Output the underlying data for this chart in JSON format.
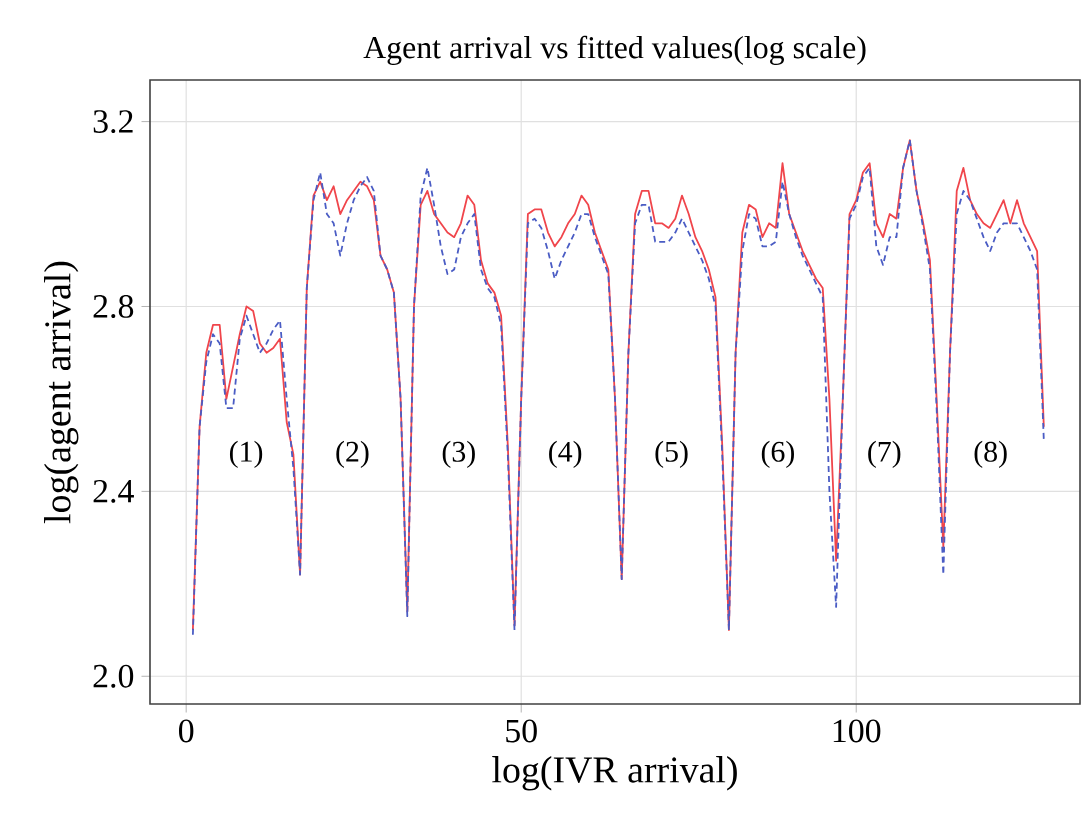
{
  "chart_data": {
    "type": "line",
    "title": "Agent arrival vs fitted values(log scale)",
    "xlabel": "log(IVR arrival)",
    "ylabel": "log(agent arrival)",
    "x": [
      1,
      2,
      3,
      4,
      5,
      6,
      7,
      8,
      9,
      10,
      11,
      12,
      13,
      14,
      15,
      16,
      17,
      18,
      19,
      20,
      21,
      22,
      23,
      24,
      25,
      26,
      27,
      28,
      29,
      30,
      31,
      32,
      33,
      34,
      35,
      36,
      37,
      38,
      39,
      40,
      41,
      42,
      43,
      44,
      45,
      46,
      47,
      48,
      49,
      50,
      51,
      52,
      53,
      54,
      55,
      56,
      57,
      58,
      59,
      60,
      61,
      62,
      63,
      64,
      65,
      66,
      67,
      68,
      69,
      70,
      71,
      72,
      73,
      74,
      75,
      76,
      77,
      78,
      79,
      80,
      81,
      82,
      83,
      84,
      85,
      86,
      87,
      88,
      89,
      90,
      91,
      92,
      93,
      94,
      95,
      96,
      97,
      98,
      99,
      100,
      101,
      102,
      103,
      104,
      105,
      106,
      107,
      108,
      109,
      110,
      111,
      112,
      113,
      114,
      115,
      116,
      117,
      118,
      119,
      120,
      121,
      122,
      123,
      124,
      125,
      126,
      127,
      128
    ],
    "series": [
      {
        "color": "#f0454b",
        "line_style": "solid",
        "values": [
          2.1,
          2.54,
          2.7,
          2.76,
          2.76,
          2.6,
          2.67,
          2.74,
          2.8,
          2.79,
          2.72,
          2.7,
          2.71,
          2.73,
          2.55,
          2.48,
          2.22,
          2.84,
          3.04,
          3.07,
          3.03,
          3.06,
          3.0,
          3.03,
          3.05,
          3.07,
          3.06,
          3.03,
          2.91,
          2.88,
          2.83,
          2.6,
          2.14,
          2.8,
          3.02,
          3.05,
          3.0,
          2.98,
          2.96,
          2.95,
          2.98,
          3.04,
          3.02,
          2.9,
          2.85,
          2.83,
          2.78,
          2.5,
          2.11,
          2.6,
          3.0,
          3.01,
          3.01,
          2.96,
          2.93,
          2.95,
          2.98,
          3.0,
          3.04,
          3.02,
          2.96,
          2.92,
          2.88,
          2.6,
          2.21,
          2.7,
          3.0,
          3.05,
          3.05,
          2.98,
          2.98,
          2.97,
          2.99,
          3.04,
          3.0,
          2.95,
          2.92,
          2.88,
          2.82,
          2.5,
          2.1,
          2.7,
          2.96,
          3.02,
          3.01,
          2.95,
          2.98,
          2.97,
          3.11,
          3.0,
          2.96,
          2.92,
          2.89,
          2.86,
          2.84,
          2.6,
          2.25,
          2.6,
          3.0,
          3.03,
          3.09,
          3.11,
          2.98,
          2.95,
          3.0,
          2.99,
          3.1,
          3.16,
          3.05,
          2.98,
          2.9,
          2.6,
          2.28,
          2.7,
          3.05,
          3.1,
          3.03,
          3.0,
          2.98,
          2.97,
          3.0,
          3.03,
          2.98,
          3.03,
          2.98,
          2.95,
          2.92,
          2.54
        ]
      },
      {
        "color": "#4a5cc4",
        "line_style": "dashed",
        "values": [
          2.09,
          2.54,
          2.68,
          2.74,
          2.72,
          2.58,
          2.58,
          2.73,
          2.78,
          2.74,
          2.7,
          2.72,
          2.75,
          2.77,
          2.6,
          2.45,
          2.22,
          2.84,
          3.03,
          3.09,
          3.0,
          2.98,
          2.91,
          2.98,
          3.03,
          3.06,
          3.08,
          3.05,
          2.91,
          2.88,
          2.83,
          2.6,
          2.13,
          2.8,
          3.04,
          3.1,
          3.02,
          2.93,
          2.87,
          2.88,
          2.95,
          2.98,
          3.0,
          2.88,
          2.84,
          2.82,
          2.76,
          2.48,
          2.1,
          2.6,
          2.98,
          2.99,
          2.97,
          2.92,
          2.86,
          2.9,
          2.93,
          2.96,
          3.0,
          3.0,
          2.95,
          2.91,
          2.87,
          2.6,
          2.21,
          2.7,
          2.98,
          3.02,
          3.02,
          2.94,
          2.94,
          2.94,
          2.96,
          2.99,
          2.96,
          2.93,
          2.9,
          2.86,
          2.8,
          2.48,
          2.1,
          2.7,
          2.92,
          3.0,
          2.99,
          2.93,
          2.93,
          2.94,
          3.07,
          3.0,
          2.95,
          2.91,
          2.88,
          2.85,
          2.82,
          2.4,
          2.15,
          2.6,
          2.99,
          3.02,
          3.08,
          3.1,
          2.93,
          2.89,
          2.95,
          2.95,
          3.1,
          3.16,
          3.05,
          2.97,
          2.88,
          2.58,
          2.22,
          2.7,
          3.0,
          3.05,
          3.03,
          2.99,
          2.95,
          2.92,
          2.96,
          2.98,
          2.98,
          2.98,
          2.95,
          2.92,
          2.88,
          2.51
        ]
      }
    ],
    "xlim": [
      -5.4,
      133.4
    ],
    "ylim": [
      1.94,
      3.29
    ],
    "xticks": [
      0,
      50,
      100
    ],
    "yticks": [
      {
        "value": 2.0,
        "label": "2.0"
      },
      {
        "value": 2.4,
        "label": "2.4"
      },
      {
        "value": 2.8,
        "label": "2.8"
      },
      {
        "value": 3.2,
        "label": "3.2"
      }
    ],
    "grid": true,
    "annotations": [
      "(1)",
      "(2)",
      "(3)",
      "(4)",
      "(5)",
      "(6)",
      "(7)",
      "(8)"
    ]
  }
}
